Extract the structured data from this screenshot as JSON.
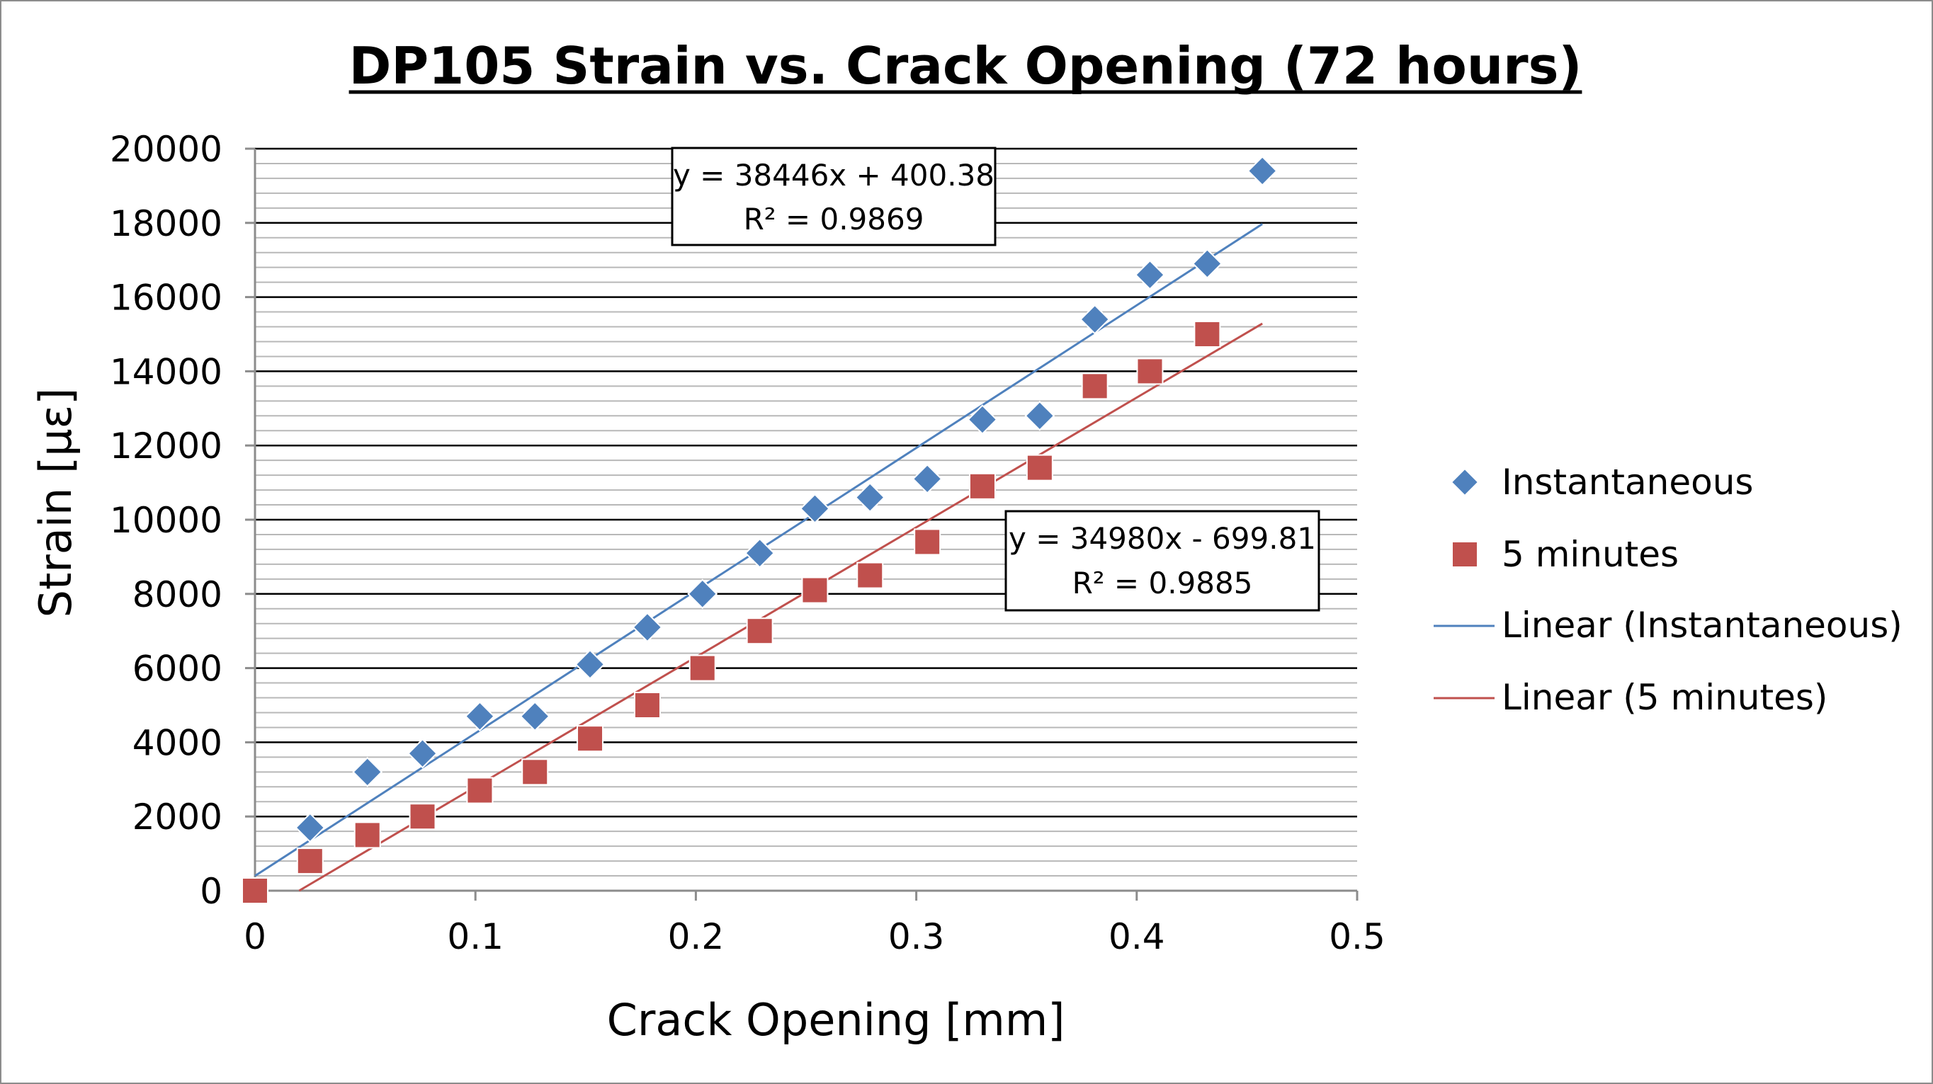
{
  "chart_data": {
    "type": "scatter",
    "title": "DP105 Strain vs. Crack Opening (72 hours)",
    "xlabel": "Crack Opening [mm]",
    "ylabel": "Strain [με]",
    "xlim": [
      0,
      0.5
    ],
    "ylim": [
      0,
      20000
    ],
    "x_ticks": [
      "0",
      "0.1",
      "0.2",
      "0.3",
      "0.4",
      "0.5"
    ],
    "y_ticks": [
      "0",
      "2000",
      "4000",
      "6000",
      "8000",
      "10000",
      "12000",
      "14000",
      "16000",
      "18000",
      "20000"
    ],
    "grid": true,
    "legend_position": "right",
    "series": [
      {
        "name": "Instantaneous",
        "marker": "diamond",
        "color": "#4f81bd",
        "x": [
          0.025,
          0.051,
          0.076,
          0.102,
          0.127,
          0.152,
          0.178,
          0.203,
          0.229,
          0.254,
          0.279,
          0.305,
          0.33,
          0.356,
          0.381,
          0.406,
          0.432,
          0.457
        ],
        "y": [
          1700,
          3200,
          3700,
          4700,
          4700,
          6100,
          7100,
          8000,
          9100,
          10300,
          10600,
          11100,
          12700,
          12800,
          15400,
          16600,
          16900,
          19400
        ]
      },
      {
        "name": "5 minutes",
        "marker": "square",
        "color": "#c0504d",
        "x": [
          0,
          0.025,
          0.051,
          0.076,
          0.102,
          0.127,
          0.152,
          0.178,
          0.203,
          0.229,
          0.254,
          0.279,
          0.305,
          0.33,
          0.356,
          0.381,
          0.406,
          0.432
        ],
        "y": [
          0,
          800,
          1500,
          2000,
          2700,
          3200,
          4100,
          5000,
          6000,
          7000,
          8100,
          8500,
          9400,
          10900,
          11400,
          13600,
          14000,
          15000
        ]
      }
    ],
    "trendlines": [
      {
        "name": "Linear (Instantaneous)",
        "slope": 38446,
        "intercept": 400.38,
        "x_range": [
          0,
          0.457
        ],
        "color": "#4f81bd",
        "equation": "y = 38446x + 400.38",
        "r2_label": "R² = 0.9869"
      },
      {
        "name": "Linear (5 minutes)",
        "slope": 34980,
        "intercept": -699.81,
        "x_range": [
          0.02,
          0.457
        ],
        "color": "#c0504d",
        "equation": "y = 34980x - 699.81",
        "r2_label": "R² = 0.9885"
      }
    ]
  }
}
